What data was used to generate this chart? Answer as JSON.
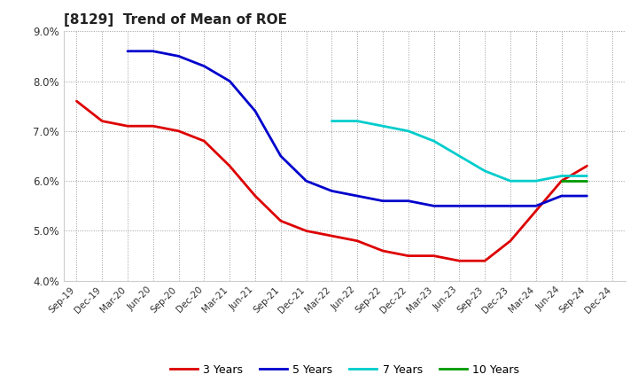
{
  "title": "[8129]  Trend of Mean of ROE",
  "ylim": [
    0.04,
    0.09
  ],
  "yticks": [
    0.04,
    0.05,
    0.06,
    0.07,
    0.08,
    0.09
  ],
  "background_color": "#ffffff",
  "grid_color": "#aaaaaa",
  "series": {
    "3 Years": {
      "color": "#dd0000",
      "x": [
        "Sep-19",
        "Dec-19",
        "Mar-20",
        "Jun-20",
        "Sep-20",
        "Dec-20",
        "Mar-21",
        "Jun-21",
        "Sep-21",
        "Dec-21",
        "Mar-22",
        "Jun-22",
        "Sep-22",
        "Dec-22",
        "Mar-23",
        "Jun-23",
        "Sep-23",
        "Dec-23",
        "Mar-24",
        "Jun-24",
        "Sep-24"
      ],
      "y": [
        0.076,
        0.072,
        0.071,
        0.071,
        0.07,
        0.068,
        0.063,
        0.057,
        0.052,
        0.05,
        0.049,
        0.048,
        0.046,
        0.045,
        0.045,
        0.044,
        0.044,
        0.048,
        0.054,
        0.06,
        0.063
      ]
    },
    "5 Years": {
      "color": "#0000cc",
      "x": [
        "Mar-20",
        "Jun-20",
        "Sep-20",
        "Dec-20",
        "Mar-21",
        "Jun-21",
        "Sep-21",
        "Dec-21",
        "Mar-22",
        "Jun-22",
        "Sep-22",
        "Dec-22",
        "Mar-23",
        "Jun-23",
        "Sep-23",
        "Dec-23",
        "Mar-24",
        "Jun-24",
        "Sep-24"
      ],
      "y": [
        0.086,
        0.086,
        0.085,
        0.083,
        0.08,
        0.074,
        0.065,
        0.06,
        0.058,
        0.057,
        0.056,
        0.056,
        0.055,
        0.055,
        0.055,
        0.055,
        0.055,
        0.057,
        0.057
      ]
    },
    "7 Years": {
      "color": "#00cccc",
      "x": [
        "Mar-22",
        "Jun-22",
        "Sep-22",
        "Dec-22",
        "Mar-23",
        "Jun-23",
        "Sep-23",
        "Dec-23",
        "Mar-24",
        "Jun-24",
        "Sep-24"
      ],
      "y": [
        0.072,
        0.072,
        0.071,
        0.07,
        0.068,
        0.065,
        0.062,
        0.06,
        0.06,
        0.061,
        0.061
      ]
    },
    "10 Years": {
      "color": "#009900",
      "x": [
        "Jun-24",
        "Sep-24"
      ],
      "y": [
        0.06,
        0.06
      ]
    }
  },
  "all_xticks": [
    "Sep-19",
    "Dec-19",
    "Mar-20",
    "Jun-20",
    "Sep-20",
    "Dec-20",
    "Mar-21",
    "Jun-21",
    "Sep-21",
    "Dec-21",
    "Mar-22",
    "Jun-22",
    "Sep-22",
    "Dec-22",
    "Mar-23",
    "Jun-23",
    "Sep-23",
    "Dec-23",
    "Mar-24",
    "Jun-24",
    "Sep-24",
    "Dec-24"
  ],
  "legend": {
    "entries": [
      "3 Years",
      "5 Years",
      "7 Years",
      "10 Years"
    ],
    "colors": [
      "#dd0000",
      "#0000cc",
      "#00cccc",
      "#009900"
    ]
  }
}
